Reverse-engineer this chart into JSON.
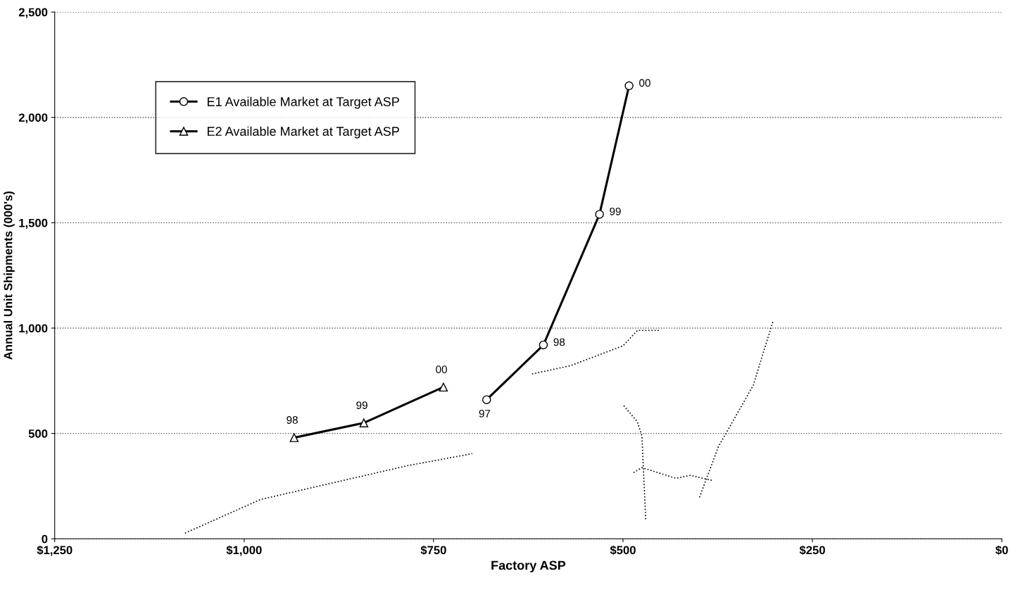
{
  "chart_data": {
    "type": "line",
    "xlabel": "Factory ASP",
    "ylabel": "Annual Unit Shipments (000's)",
    "xlim": [
      1250,
      0
    ],
    "xticks": [
      {
        "value": 1250,
        "label": "$1,250"
      },
      {
        "value": 1000,
        "label": "$1,000"
      },
      {
        "value": 750,
        "label": "$750"
      },
      {
        "value": 500,
        "label": "$500"
      },
      {
        "value": 250,
        "label": "$250"
      },
      {
        "value": 0,
        "label": "$0"
      }
    ],
    "ylim": [
      0,
      2500
    ],
    "yticks": [
      {
        "value": 0,
        "label": "0"
      },
      {
        "value": 500,
        "label": "500"
      },
      {
        "value": 1000,
        "label": "1,000"
      },
      {
        "value": 1500,
        "label": "1,500"
      },
      {
        "value": 2000,
        "label": "2,000"
      },
      {
        "value": 2500,
        "label": "2,500"
      }
    ],
    "grid": "y",
    "legend": "top left",
    "annotations": [
      {
        "text": "97",
        "x": 680,
        "y": 660
      },
      {
        "text": "98",
        "x": 605,
        "y": 920
      },
      {
        "text": "99",
        "x": 531,
        "y": 1540
      },
      {
        "text": "00",
        "x": 492,
        "y": 2150
      },
      {
        "text": "98",
        "x": 934,
        "y": 480
      },
      {
        "text": "99",
        "x": 842,
        "y": 550
      },
      {
        "text": "00",
        "x": 737,
        "y": 720
      }
    ],
    "series": [
      {
        "name": "E1 Available Market at Target ASP",
        "color": "#000000",
        "marker": "circle",
        "line_style": "solid",
        "x": [
          680,
          605,
          531,
          492
        ],
        "values": [
          660,
          920,
          1540,
          2150
        ]
      },
      {
        "name": "E2 Available Market at Target ASP",
        "color": "#000000",
        "marker": "triangle",
        "line_style": "solid",
        "x": [
          934,
          842,
          737
        ],
        "values": [
          480,
          550,
          720
        ]
      },
      {
        "color": "#000000",
        "marker": "none",
        "line_style": "dotted",
        "x": [
          1078,
          978,
          783,
          699
        ],
        "values": [
          27,
          187,
          348,
          404
        ]
      },
      {
        "color": "#000000",
        "marker": "none",
        "line_style": "dotted",
        "x": [
          620,
          569,
          500,
          481,
          451
        ],
        "values": [
          782,
          822,
          916,
          989,
          989
        ]
      },
      {
        "color": "#000000",
        "marker": "none",
        "line_style": "dotted",
        "x": [
          499,
          481,
          475,
          470
        ],
        "values": [
          632,
          555,
          488,
          87
        ]
      },
      {
        "color": "#000000",
        "marker": "none",
        "line_style": "dotted",
        "x": [
          486,
          475,
          430,
          411,
          382
        ],
        "values": [
          314,
          338,
          287,
          301,
          277
        ]
      },
      {
        "color": "#000000",
        "marker": "none",
        "line_style": "dotted",
        "x": [
          399,
          374,
          328,
          302
        ],
        "values": [
          197,
          438,
          729,
          1033
        ]
      }
    ]
  }
}
